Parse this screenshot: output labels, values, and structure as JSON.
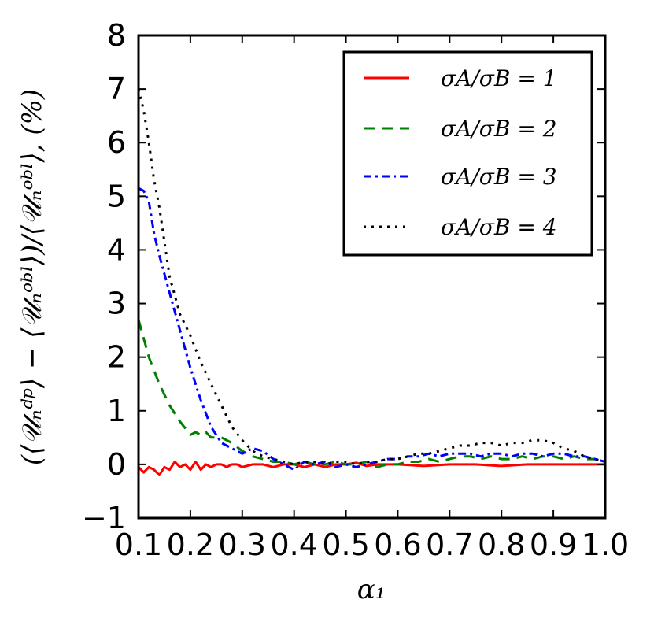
{
  "chart_data": {
    "type": "line",
    "title": "",
    "xlabel": "α₁",
    "ylabel": "(⟨𝒰ₙᵈᵖ⟩ − ⟨𝒰ₙᵒᵇˡ⟩)/⟨𝒰ₙᵒᵇˡ⟩, (%)",
    "xlim": [
      0.1,
      1.0
    ],
    "ylim": [
      -1,
      8
    ],
    "x_ticks": [
      "0.1",
      "0.2",
      "0.3",
      "0.4",
      "0.5",
      "0.6",
      "0.7",
      "0.8",
      "0.9",
      "1.0"
    ],
    "y_ticks": [
      "−1",
      "0",
      "1",
      "2",
      "3",
      "4",
      "5",
      "6",
      "7",
      "8"
    ],
    "legend_position": "top-right",
    "series": [
      {
        "name": "σA/σB = 1",
        "color": "#ff0000",
        "dash": "solid",
        "x": [
          0.1,
          0.11,
          0.12,
          0.13,
          0.14,
          0.15,
          0.16,
          0.17,
          0.18,
          0.19,
          0.2,
          0.21,
          0.22,
          0.23,
          0.24,
          0.25,
          0.26,
          0.27,
          0.28,
          0.29,
          0.3,
          0.32,
          0.34,
          0.36,
          0.38,
          0.4,
          0.42,
          0.44,
          0.46,
          0.48,
          0.5,
          0.52,
          0.54,
          0.56,
          0.6,
          0.65,
          0.7,
          0.75,
          0.8,
          0.85,
          0.9,
          0.95,
          1.0
        ],
        "values": [
          -0.05,
          -0.15,
          -0.05,
          -0.1,
          -0.2,
          -0.05,
          -0.1,
          0.05,
          -0.05,
          0.0,
          -0.1,
          0.05,
          -0.1,
          0.0,
          -0.05,
          0.0,
          0.0,
          -0.05,
          0.0,
          0.0,
          -0.05,
          0.0,
          0.0,
          -0.05,
          0.0,
          0.0,
          -0.05,
          0.0,
          -0.05,
          0.0,
          0.0,
          0.03,
          -0.03,
          0.0,
          0.0,
          -0.03,
          0.0,
          0.0,
          -0.03,
          0.0,
          0.0,
          0.0,
          0.0
        ]
      },
      {
        "name": "σA/σB = 2",
        "color": "#008000",
        "dash": "dashed",
        "x": [
          0.1,
          0.12,
          0.14,
          0.16,
          0.18,
          0.2,
          0.21,
          0.22,
          0.23,
          0.24,
          0.26,
          0.28,
          0.3,
          0.32,
          0.34,
          0.36,
          0.38,
          0.4,
          0.42,
          0.44,
          0.46,
          0.48,
          0.5,
          0.52,
          0.54,
          0.56,
          0.58,
          0.6,
          0.62,
          0.64,
          0.66,
          0.68,
          0.7,
          0.72,
          0.74,
          0.76,
          0.78,
          0.8,
          0.82,
          0.84,
          0.86,
          0.88,
          0.9,
          0.92,
          0.94,
          0.96,
          0.98,
          1.0
        ],
        "values": [
          2.7,
          2.0,
          1.5,
          1.1,
          0.8,
          0.55,
          0.6,
          0.55,
          0.6,
          0.5,
          0.5,
          0.4,
          0.25,
          0.15,
          0.1,
          0.05,
          0.05,
          0.0,
          0.05,
          0.0,
          0.0,
          0.05,
          0.0,
          0.0,
          0.05,
          -0.05,
          0.0,
          0.0,
          0.05,
          0.05,
          0.1,
          0.05,
          0.1,
          0.15,
          0.15,
          0.1,
          0.15,
          0.1,
          0.1,
          0.15,
          0.1,
          0.15,
          0.15,
          0.1,
          0.15,
          0.1,
          0.1,
          0.05
        ]
      },
      {
        "name": "σA/σB = 3",
        "color": "#0000ff",
        "dash": "dashdot",
        "x": [
          0.1,
          0.11,
          0.12,
          0.13,
          0.14,
          0.16,
          0.18,
          0.2,
          0.22,
          0.24,
          0.26,
          0.28,
          0.3,
          0.32,
          0.34,
          0.36,
          0.38,
          0.4,
          0.42,
          0.44,
          0.46,
          0.48,
          0.5,
          0.52,
          0.54,
          0.56,
          0.58,
          0.6,
          0.62,
          0.64,
          0.66,
          0.68,
          0.7,
          0.72,
          0.74,
          0.76,
          0.78,
          0.8,
          0.82,
          0.84,
          0.86,
          0.88,
          0.9,
          0.92,
          0.94,
          0.96,
          0.98,
          1.0
        ],
        "values": [
          5.15,
          5.1,
          4.9,
          4.3,
          3.9,
          3.2,
          2.5,
          1.8,
          1.2,
          0.7,
          0.4,
          0.3,
          0.2,
          0.3,
          0.25,
          0.1,
          0.0,
          -0.1,
          0.05,
          0.0,
          0.05,
          -0.05,
          0.0,
          -0.05,
          0.0,
          0.05,
          0.1,
          0.1,
          0.15,
          0.15,
          0.2,
          0.15,
          0.2,
          0.2,
          0.2,
          0.15,
          0.2,
          0.2,
          0.15,
          0.2,
          0.2,
          0.15,
          0.2,
          0.2,
          0.15,
          0.15,
          0.1,
          0.05
        ]
      },
      {
        "name": "σA/σB = 4",
        "color": "#000000",
        "dash": "dotted",
        "x": [
          0.1,
          0.11,
          0.12,
          0.13,
          0.14,
          0.16,
          0.18,
          0.2,
          0.22,
          0.24,
          0.26,
          0.28,
          0.3,
          0.32,
          0.34,
          0.36,
          0.38,
          0.4,
          0.42,
          0.44,
          0.46,
          0.48,
          0.5,
          0.52,
          0.54,
          0.56,
          0.58,
          0.6,
          0.62,
          0.64,
          0.66,
          0.68,
          0.7,
          0.72,
          0.74,
          0.76,
          0.78,
          0.8,
          0.82,
          0.84,
          0.86,
          0.88,
          0.9,
          0.92,
          0.94,
          0.96,
          0.98,
          1.0
        ],
        "values": [
          7.0,
          6.6,
          6.0,
          5.3,
          4.8,
          3.5,
          2.8,
          2.4,
          1.9,
          1.5,
          1.1,
          0.7,
          0.45,
          0.25,
          0.15,
          0.1,
          0.05,
          0.0,
          0.05,
          0.05,
          0.0,
          0.05,
          0.05,
          0.0,
          0.05,
          0.05,
          0.1,
          0.1,
          0.15,
          0.2,
          0.2,
          0.25,
          0.3,
          0.35,
          0.35,
          0.4,
          0.4,
          0.35,
          0.4,
          0.4,
          0.45,
          0.45,
          0.4,
          0.3,
          0.25,
          0.15,
          0.1,
          0.05
        ]
      }
    ]
  }
}
